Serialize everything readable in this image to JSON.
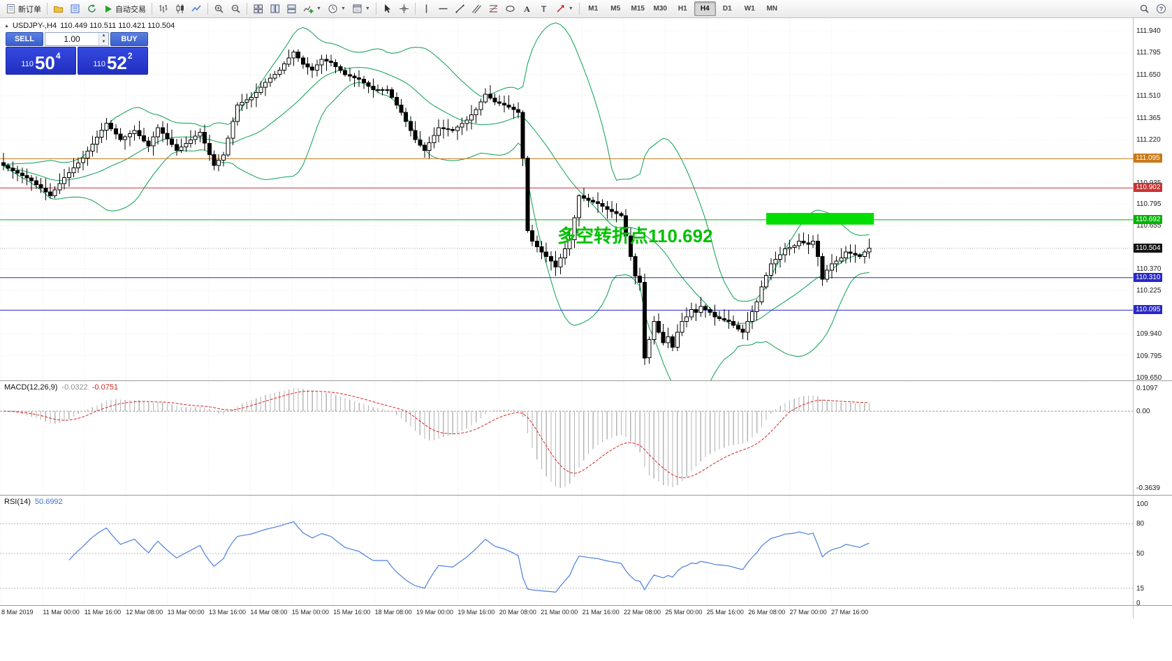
{
  "toolbar": {
    "timeframes": [
      "M1",
      "M5",
      "M15",
      "M30",
      "H1",
      "H4",
      "D1",
      "W1",
      "MN"
    ],
    "active_timeframe": "H4",
    "items": [
      {
        "type": "button",
        "name": "new-order-button",
        "icon": "new-order-icon",
        "label": "新订单"
      },
      {
        "type": "sep"
      },
      {
        "type": "button",
        "name": "profiles-button",
        "icon": "profiles-icon"
      },
      {
        "type": "button",
        "name": "market-watch-button",
        "icon": "market-watch-icon"
      },
      {
        "type": "button",
        "name": "refresh-button",
        "icon": "refresh-icon"
      },
      {
        "type": "button",
        "name": "autotrading-button",
        "icon": "autotrade-icon",
        "label": "自动交易"
      },
      {
        "type": "sep"
      },
      {
        "type": "button",
        "name": "bar-chart-button",
        "icon": "bar-chart-icon"
      },
      {
        "type": "button",
        "name": "candle-chart-button",
        "icon": "candles-icon"
      },
      {
        "type": "button",
        "name": "line-chart-button",
        "icon": "line-chart-icon"
      },
      {
        "type": "sep"
      },
      {
        "type": "button",
        "name": "zoom-in-button",
        "icon": "zoom-in-icon"
      },
      {
        "type": "button",
        "name": "zoom-out-button",
        "icon": "zoom-out-icon"
      },
      {
        "type": "sep"
      },
      {
        "type": "button",
        "name": "tile-windows-button",
        "icon": "tile-windows-icon"
      },
      {
        "type": "button",
        "name": "tile-vertical-button",
        "icon": "tile-vertical-icon"
      },
      {
        "type": "button",
        "name": "tile-horizontal-button",
        "icon": "tile-horizontal-icon"
      },
      {
        "type": "button",
        "name": "indicators-button",
        "icon": "indicators-icon",
        "caret": true
      },
      {
        "type": "button",
        "name": "periods-button",
        "icon": "periods-icon",
        "caret": true
      },
      {
        "type": "button",
        "name": "templates-button",
        "icon": "templates-icon",
        "caret": true
      },
      {
        "type": "sep"
      },
      {
        "type": "button",
        "name": "cursor-button",
        "icon": "cursor-icon"
      },
      {
        "type": "button",
        "name": "crosshair-button",
        "icon": "crosshair-icon"
      },
      {
        "type": "sep"
      },
      {
        "type": "button",
        "name": "vertical-line-button",
        "icon": "vline-icon"
      },
      {
        "type": "button",
        "name": "horizontal-line-button",
        "icon": "hline-icon"
      },
      {
        "type": "button",
        "name": "trendline-button",
        "icon": "trendline-icon"
      },
      {
        "type": "button",
        "name": "channel-button",
        "icon": "channel-icon"
      },
      {
        "type": "button",
        "name": "fibonacci-button",
        "icon": "fibonacci-icon"
      },
      {
        "type": "button",
        "name": "shapes-button",
        "icon": "ellipse-icon"
      },
      {
        "type": "button",
        "name": "text-button",
        "icon": "text-icon"
      },
      {
        "type": "button",
        "name": "label-button",
        "icon": "label-icon"
      },
      {
        "type": "button",
        "name": "arrows-button",
        "icon": "arrows-icon",
        "caret": true
      },
      {
        "type": "sep"
      },
      {
        "type": "timeframes"
      },
      {
        "type": "spacer"
      },
      {
        "type": "button",
        "name": "search-button",
        "icon": "search-icon"
      },
      {
        "type": "button",
        "name": "help-button",
        "icon": "help-icon"
      }
    ]
  },
  "quote_panel": {
    "sell_label": "SELL",
    "buy_label": "BUY",
    "lot": "1.00",
    "sell_small": "110",
    "sell_big": "50",
    "sell_sup": "4",
    "buy_small": "110",
    "buy_big": "52",
    "buy_sup": "2"
  },
  "chart": {
    "title": "USDJPY-,H4",
    "ohlc": "110.449 110.511 110.421 110.504",
    "annotation": {
      "text": "多空转折点110.692",
      "color": "#00c000"
    },
    "axis_labels": [
      "111.940",
      "111.795",
      "111.650",
      "111.510",
      "111.365",
      "111.220",
      "110.935",
      "110.795",
      "110.655",
      "110.370",
      "110.225",
      "109.940",
      "109.795",
      "109.650"
    ],
    "special_labels": [
      {
        "text": "111.095",
        "price": 111.095,
        "bg": "#c87818"
      },
      {
        "text": "110.902",
        "price": 110.902,
        "bg": "#c83232"
      },
      {
        "text": "110.692",
        "price": 110.692,
        "bg": "#00b400"
      },
      {
        "text": "110.504",
        "price": 110.504,
        "bg": "#141414"
      },
      {
        "text": "110.310",
        "price": 110.31,
        "bg": "#2828c8"
      },
      {
        "text": "110.095",
        "price": 110.095,
        "bg": "#2828c8"
      }
    ],
    "hlines": [
      {
        "price": 111.095,
        "color": "#c87818",
        "style": "solid"
      },
      {
        "price": 110.902,
        "color": "#c83232",
        "style": "solid"
      },
      {
        "price": 110.692,
        "color": "#00b400",
        "style": "solid"
      },
      {
        "price": 110.504,
        "color": "#aaaaaa",
        "style": "dotted"
      },
      {
        "price": 110.31,
        "color": "#2828c8",
        "style": "solid"
      },
      {
        "price": 110.095,
        "color": "#2828c8",
        "style": "solid"
      }
    ],
    "highlight_rect": {
      "from_bar": 163,
      "to_bar": 186,
      "top_price": 110.737,
      "bottom_price": 110.66,
      "color": "#00dd00"
    },
    "time_labels": [
      "8 Mar 2019",
      "11 Mar 00:00",
      "11 Mar 16:00",
      "12 Mar 08:00",
      "13 Mar 00:00",
      "13 Mar 16:00",
      "14 Mar 08:00",
      "15 Mar 00:00",
      "15 Mar 16:00",
      "18 Mar 08:00",
      "19 Mar 00:00",
      "19 Mar 16:00",
      "20 Mar 08:00",
      "21 Mar 00:00",
      "21 Mar 16:00",
      "22 Mar 08:00",
      "25 Mar 00:00",
      "25 Mar 16:00",
      "26 Mar 08:00",
      "27 Mar 00:00",
      "27 Mar 16:00"
    ]
  },
  "chart_data": {
    "type": "candlestick",
    "symbol": "USDJPY-",
    "timeframe": "H4",
    "open": 110.449,
    "high": 110.511,
    "low": 110.421,
    "close": 110.504,
    "price_axis_range": [
      109.65,
      111.94
    ],
    "indicators": [
      "Bollinger Bands(20,2)",
      "MACD(12,26,9)",
      "RSI(14)"
    ],
    "closes": [
      111.05,
      111.033,
      111.017,
      111.0,
      110.983,
      110.967,
      110.95,
      110.925,
      110.9,
      110.875,
      110.85,
      110.89,
      110.93,
      110.97,
      111.003,
      111.035,
      111.068,
      111.1,
      111.146,
      111.192,
      111.238,
      111.284,
      111.33,
      111.293,
      111.257,
      111.22,
      111.24,
      111.26,
      111.28,
      111.247,
      111.213,
      111.18,
      111.24,
      111.3,
      111.263,
      111.225,
      111.188,
      111.15,
      111.173,
      111.197,
      111.22,
      111.245,
      111.27,
      111.197,
      111.123,
      111.05,
      111.085,
      111.12,
      111.23,
      111.34,
      111.45,
      111.467,
      111.483,
      111.5,
      111.533,
      111.567,
      111.6,
      111.627,
      111.653,
      111.68,
      111.72,
      111.76,
      111.8,
      111.76,
      111.72,
      111.7,
      111.68,
      111.715,
      111.75,
      111.74,
      111.73,
      111.703,
      111.677,
      111.65,
      111.64,
      111.63,
      111.62,
      111.597,
      111.573,
      111.55,
      111.55,
      111.55,
      111.55,
      111.5,
      111.45,
      111.4,
      111.34,
      111.28,
      111.22,
      111.185,
      111.15,
      111.2,
      111.25,
      111.3,
      111.293,
      111.287,
      111.28,
      111.303,
      111.327,
      111.35,
      111.385,
      111.42,
      111.47,
      111.52,
      111.495,
      111.47,
      111.46,
      111.45,
      111.435,
      111.42,
      111.4,
      111.1,
      110.62,
      110.55,
      110.515,
      110.48,
      110.45,
      110.42,
      110.38,
      110.44,
      110.5,
      110.56,
      110.705,
      110.85,
      110.835,
      110.82,
      110.81,
      110.8,
      110.78,
      110.76,
      110.747,
      110.733,
      110.72,
      110.585,
      110.45,
      110.32,
      110.28,
      109.78,
      109.9,
      110.02,
      109.95,
      109.88,
      109.92,
      109.85,
      109.95,
      110.02,
      110.05,
      110.1,
      110.08,
      110.12,
      110.1,
      110.08,
      110.05,
      110.04,
      110.03,
      110.02,
      109.995,
      109.97,
      109.95,
      110.02,
      110.085,
      110.15,
      110.25,
      110.325,
      110.4,
      110.43,
      110.46,
      110.5,
      110.51,
      110.52,
      110.55,
      110.54,
      110.53,
      110.55,
      110.45,
      110.3,
      110.36,
      110.4,
      110.42,
      110.44,
      110.48,
      110.47,
      110.46,
      110.45,
      110.48,
      110.504
    ]
  },
  "macd": {
    "label": "MACD(12,26,9)",
    "value_main": "-0.0322",
    "value_signal": "-0.0751",
    "axis_max": 0.1097,
    "axis_min": -0.3639,
    "axis_labels": [
      "0.1097",
      "0.00",
      "-0.3639"
    ]
  },
  "rsi": {
    "label": "RSI(14)",
    "value": "50.6992",
    "axis_labels": [
      100,
      80,
      50,
      15,
      0
    ],
    "levels": [
      80,
      50,
      15
    ]
  },
  "colors": {
    "bollinger": "#0aa050",
    "macd_hist": "#b4b4b4",
    "macd_signal": "#dd2222",
    "rsi_line": "#4a7fe0",
    "grid": "#e9e9e9",
    "panel_blue": "#2a3bd4",
    "button_blue": "#4a6fd8"
  }
}
